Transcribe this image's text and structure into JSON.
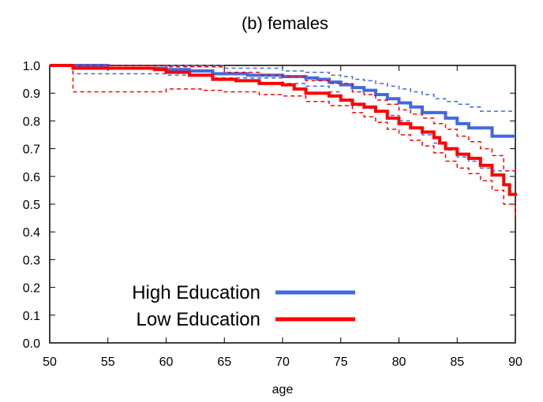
{
  "chart_data": {
    "type": "line",
    "title": "(b) females",
    "xlabel": "age",
    "ylabel": "",
    "xlim": [
      50,
      90
    ],
    "ylim": [
      0.0,
      1.0
    ],
    "xticks": [
      "50",
      "55",
      "60",
      "65",
      "70",
      "75",
      "80",
      "85",
      "90"
    ],
    "yticks": [
      "0.0",
      "0.1",
      "0.2",
      "0.3",
      "0.4",
      "0.5",
      "0.6",
      "0.7",
      "0.8",
      "0.9",
      "1.0"
    ],
    "grid": false,
    "legend_position": "bottom-left",
    "series": [
      {
        "name": "High Education",
        "color": "#4169e1",
        "style": "solid",
        "points": [
          [
            50,
            1.0
          ],
          [
            55,
            0.99
          ],
          [
            60,
            0.985
          ],
          [
            62,
            0.98
          ],
          [
            64,
            0.97
          ],
          [
            67,
            0.965
          ],
          [
            70,
            0.96
          ],
          [
            72,
            0.955
          ],
          [
            73,
            0.95
          ],
          [
            74,
            0.94
          ],
          [
            75,
            0.93
          ],
          [
            76,
            0.92
          ],
          [
            77,
            0.91
          ],
          [
            78,
            0.895
          ],
          [
            79,
            0.88
          ],
          [
            80,
            0.865
          ],
          [
            81,
            0.85
          ],
          [
            82,
            0.83
          ],
          [
            84,
            0.81
          ],
          [
            85,
            0.79
          ],
          [
            86,
            0.775
          ],
          [
            87,
            0.775
          ],
          [
            88,
            0.745
          ],
          [
            90,
            0.745
          ]
        ]
      },
      {
        "name": "High Education upper CI",
        "color": "#4169e1",
        "style": "dashed",
        "points": [
          [
            50,
            1.0
          ],
          [
            60,
            1.0
          ],
          [
            65,
            0.99
          ],
          [
            70,
            0.98
          ],
          [
            72,
            0.975
          ],
          [
            74,
            0.965
          ],
          [
            75,
            0.96
          ],
          [
            76,
            0.95
          ],
          [
            77,
            0.945
          ],
          [
            78,
            0.935
          ],
          [
            79,
            0.925
          ],
          [
            80,
            0.915
          ],
          [
            81,
            0.905
          ],
          [
            82,
            0.895
          ],
          [
            83,
            0.88
          ],
          [
            84,
            0.87
          ],
          [
            85,
            0.86
          ],
          [
            86,
            0.85
          ],
          [
            87,
            0.835
          ],
          [
            90,
            0.835
          ]
        ]
      },
      {
        "name": "High Education lower CI",
        "color": "#4169e1",
        "style": "dashed",
        "points": [
          [
            50,
            1.0
          ],
          [
            52,
            0.97
          ],
          [
            60,
            0.965
          ],
          [
            64,
            0.955
          ],
          [
            70,
            0.935
          ],
          [
            72,
            0.925
          ],
          [
            74,
            0.905
          ],
          [
            75,
            0.875
          ],
          [
            76,
            0.855
          ],
          [
            77,
            0.845
          ],
          [
            78,
            0.835
          ],
          [
            79,
            0.82
          ],
          [
            80,
            0.8
          ],
          [
            81,
            0.775
          ],
          [
            82,
            0.75
          ],
          [
            83,
            0.72
          ],
          [
            84,
            0.695
          ],
          [
            85,
            0.67
          ],
          [
            86,
            0.655
          ],
          [
            87,
            0.63
          ],
          [
            88,
            0.62
          ],
          [
            90,
            0.62
          ]
        ]
      },
      {
        "name": "Low Education",
        "color": "#ff0000",
        "style": "solid",
        "points": [
          [
            50,
            1.0
          ],
          [
            52,
            0.99
          ],
          [
            55,
            0.99
          ],
          [
            59,
            0.985
          ],
          [
            60,
            0.975
          ],
          [
            62,
            0.965
          ],
          [
            64,
            0.95
          ],
          [
            66,
            0.945
          ],
          [
            68,
            0.935
          ],
          [
            70,
            0.93
          ],
          [
            71,
            0.915
          ],
          [
            72,
            0.9
          ],
          [
            74,
            0.89
          ],
          [
            75,
            0.875
          ],
          [
            76,
            0.86
          ],
          [
            77,
            0.85
          ],
          [
            78,
            0.835
          ],
          [
            79,
            0.81
          ],
          [
            80,
            0.79
          ],
          [
            81,
            0.775
          ],
          [
            82,
            0.76
          ],
          [
            83,
            0.74
          ],
          [
            83.5,
            0.72
          ],
          [
            84,
            0.7
          ],
          [
            85,
            0.68
          ],
          [
            86,
            0.665
          ],
          [
            87,
            0.64
          ],
          [
            88,
            0.605
          ],
          [
            89,
            0.57
          ],
          [
            89.5,
            0.535
          ],
          [
            90,
            0.53
          ]
        ]
      },
      {
        "name": "Low Education upper CI",
        "color": "#ff0000",
        "style": "dashed",
        "points": [
          [
            50,
            1.0
          ],
          [
            60,
            0.995
          ],
          [
            65,
            0.975
          ],
          [
            68,
            0.965
          ],
          [
            70,
            0.96
          ],
          [
            72,
            0.945
          ],
          [
            74,
            0.935
          ],
          [
            76,
            0.905
          ],
          [
            77,
            0.895
          ],
          [
            78,
            0.875
          ],
          [
            79,
            0.86
          ],
          [
            80,
            0.84
          ],
          [
            81,
            0.825
          ],
          [
            82,
            0.81
          ],
          [
            83,
            0.79
          ],
          [
            84,
            0.77
          ],
          [
            85,
            0.745
          ],
          [
            86,
            0.725
          ],
          [
            87,
            0.7
          ],
          [
            88,
            0.675
          ],
          [
            89,
            0.62
          ],
          [
            90,
            0.6
          ]
        ]
      },
      {
        "name": "Low Education lower CI",
        "color": "#ff0000",
        "style": "dashed",
        "points": [
          [
            50,
            1.0
          ],
          [
            52,
            0.905
          ],
          [
            59,
            0.905
          ],
          [
            60,
            0.915
          ],
          [
            63,
            0.91
          ],
          [
            65,
            0.905
          ],
          [
            68,
            0.895
          ],
          [
            70,
            0.89
          ],
          [
            72,
            0.87
          ],
          [
            74,
            0.855
          ],
          [
            76,
            0.83
          ],
          [
            77,
            0.815
          ],
          [
            78,
            0.795
          ],
          [
            79,
            0.77
          ],
          [
            80,
            0.75
          ],
          [
            81,
            0.73
          ],
          [
            82,
            0.71
          ],
          [
            83,
            0.685
          ],
          [
            84,
            0.655
          ],
          [
            85,
            0.63
          ],
          [
            86,
            0.61
          ],
          [
            87,
            0.585
          ],
          [
            88,
            0.55
          ],
          [
            89,
            0.5
          ],
          [
            90,
            0.455
          ]
        ]
      }
    ],
    "legend": [
      {
        "label": "High Education",
        "color": "#4169e1"
      },
      {
        "label": "Low Education",
        "color": "#ff0000"
      }
    ]
  }
}
